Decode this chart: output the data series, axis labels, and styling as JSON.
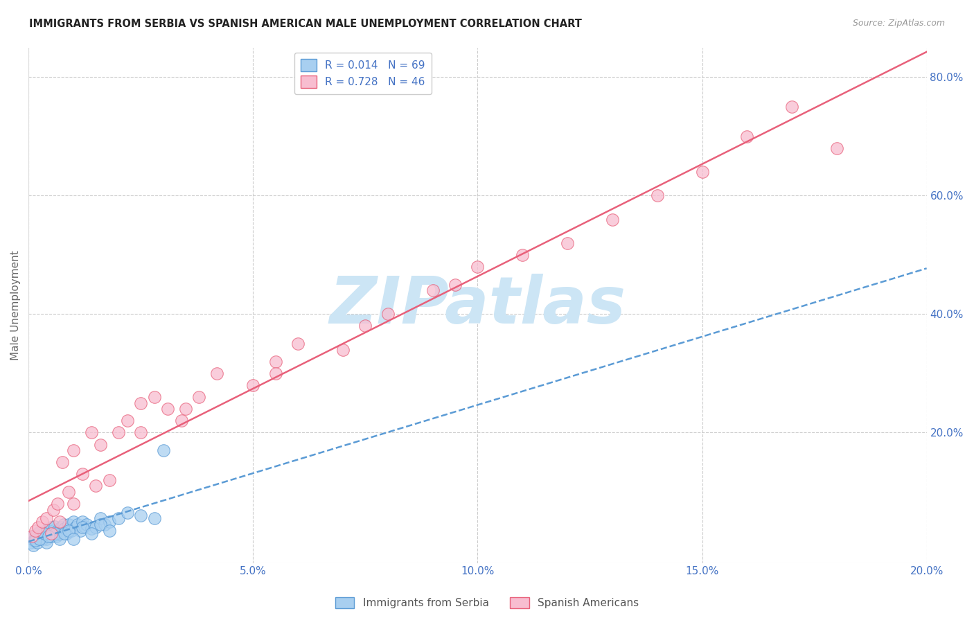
{
  "title": "IMMIGRANTS FROM SERBIA VS SPANISH AMERICAN MALE UNEMPLOYMENT CORRELATION CHART",
  "source": "Source: ZipAtlas.com",
  "ylabel": "Male Unemployment",
  "x_tick_labels": [
    "0.0%",
    "5.0%",
    "10.0%",
    "15.0%",
    "20.0%"
  ],
  "x_tick_values": [
    0.0,
    5.0,
    10.0,
    15.0,
    20.0
  ],
  "y_tick_labels_right": [
    "80.0%",
    "60.0%",
    "40.0%",
    "20.0%"
  ],
  "y_tick_values_right": [
    80.0,
    60.0,
    40.0,
    20.0
  ],
  "xlim": [
    0,
    20
  ],
  "ylim": [
    -2,
    85
  ],
  "background_color": "#ffffff",
  "grid_color": "#cccccc",
  "series1_face_color": "#a8cff0",
  "series1_edge_color": "#5b9bd5",
  "series1_label": "Immigrants from Serbia",
  "series1_R": "0.014",
  "series1_N": "69",
  "series2_face_color": "#f8bdd0",
  "series2_edge_color": "#e8607a",
  "series2_label": "Spanish Americans",
  "series2_R": "0.728",
  "series2_N": "46",
  "trend1_color": "#5b9bd5",
  "trend2_color": "#e8607a",
  "legend_color": "#4472c4",
  "watermark_color": "#cce5f5",
  "title_color": "#222222",
  "axis_label_color": "#4472c4",
  "ylabel_color": "#666666",
  "series1_x": [
    0.05,
    0.08,
    0.1,
    0.12,
    0.15,
    0.18,
    0.2,
    0.22,
    0.25,
    0.28,
    0.3,
    0.32,
    0.35,
    0.38,
    0.4,
    0.42,
    0.45,
    0.48,
    0.5,
    0.52,
    0.55,
    0.58,
    0.6,
    0.62,
    0.65,
    0.68,
    0.7,
    0.72,
    0.75,
    0.78,
    0.8,
    0.85,
    0.9,
    0.95,
    1.0,
    1.05,
    1.1,
    1.15,
    1.2,
    1.25,
    1.3,
    1.4,
    1.5,
    1.6,
    1.7,
    1.8,
    2.0,
    2.2,
    2.5,
    2.8,
    0.1,
    0.2,
    0.3,
    0.4,
    0.5,
    0.6,
    0.7,
    0.8,
    0.9,
    1.0,
    1.2,
    1.4,
    1.6,
    1.8,
    0.15,
    0.25,
    0.35,
    0.45,
    3.0
  ],
  "series1_y": [
    1.5,
    2.0,
    2.5,
    1.8,
    2.2,
    2.8,
    3.0,
    2.5,
    3.2,
    2.0,
    2.5,
    3.0,
    2.8,
    3.5,
    2.0,
    3.2,
    3.5,
    2.8,
    4.0,
    3.0,
    3.5,
    4.2,
    3.0,
    2.5,
    3.5,
    2.8,
    3.0,
    4.0,
    3.2,
    4.5,
    3.8,
    3.0,
    4.5,
    3.5,
    5.0,
    4.0,
    4.5,
    3.5,
    5.0,
    4.2,
    4.5,
    3.8,
    4.0,
    5.5,
    4.5,
    5.0,
    5.5,
    6.5,
    6.0,
    5.5,
    1.0,
    1.5,
    2.0,
    1.5,
    2.5,
    3.0,
    2.0,
    3.0,
    3.5,
    2.0,
    4.0,
    3.0,
    4.5,
    3.5,
    1.8,
    2.0,
    3.0,
    2.5,
    17.0
  ],
  "series2_x": [
    0.08,
    0.15,
    0.22,
    0.3,
    0.4,
    0.55,
    0.65,
    0.75,
    0.9,
    1.0,
    1.2,
    1.4,
    1.6,
    1.8,
    2.0,
    2.2,
    2.5,
    2.8,
    3.1,
    3.4,
    3.8,
    4.2,
    5.0,
    5.5,
    6.0,
    7.0,
    8.0,
    9.0,
    10.0,
    11.0,
    12.0,
    13.0,
    14.0,
    15.0,
    16.0,
    17.0,
    18.0,
    0.5,
    0.7,
    1.0,
    1.5,
    2.5,
    3.5,
    5.5,
    7.5,
    9.5
  ],
  "series2_y": [
    2.5,
    3.5,
    4.0,
    5.0,
    5.5,
    7.0,
    8.0,
    15.0,
    10.0,
    17.0,
    13.0,
    20.0,
    18.0,
    12.0,
    20.0,
    22.0,
    25.0,
    26.0,
    24.0,
    22.0,
    26.0,
    30.0,
    28.0,
    32.0,
    35.0,
    34.0,
    40.0,
    44.0,
    48.0,
    50.0,
    52.0,
    56.0,
    60.0,
    64.0,
    70.0,
    75.0,
    68.0,
    3.0,
    5.0,
    8.0,
    11.0,
    20.0,
    24.0,
    30.0,
    38.0,
    45.0
  ],
  "trend1_slope": 0.5,
  "trend1_intercept": 3.0,
  "trend2_slope": 3.0,
  "trend2_intercept": 2.0
}
